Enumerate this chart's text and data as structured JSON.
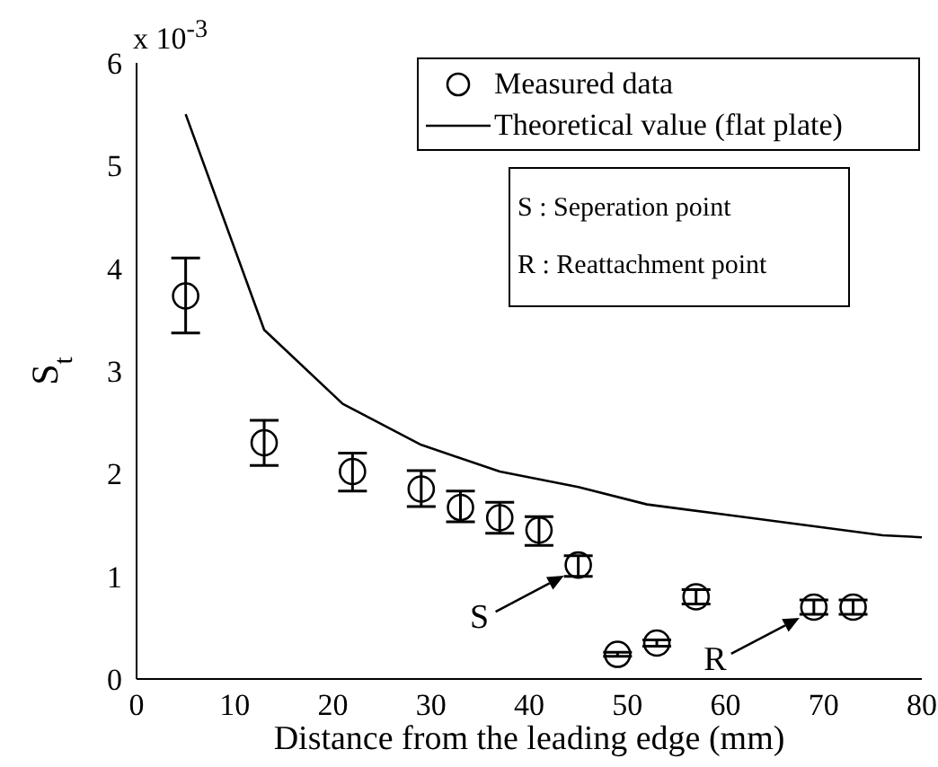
{
  "chart_data": {
    "type": "scatter",
    "xlabel": "Distance from the leading edge (mm)",
    "ylabel": "S$_{t}$",
    "xlim": [
      0,
      80
    ],
    "xticks": [
      0,
      10,
      20,
      30,
      40,
      50,
      60,
      70,
      80
    ],
    "ylim": [
      0,
      6
    ],
    "yticks": [
      0,
      1,
      2,
      3,
      4,
      5,
      6
    ],
    "grid": false,
    "legend": "top right",
    "annotations": [
      "x 10$^{-3}$",
      {
        "text": "S",
        "x": 45,
        "y": 1.11
      },
      {
        "text": "R",
        "x": 69,
        "y": 0.7
      },
      "S : Seperation point",
      "R : Reattachment point"
    ],
    "series": [
      {
        "name": "Measured data",
        "marker": "circle",
        "color": "#000000",
        "x": [
          5,
          13,
          22,
          29,
          33,
          37,
          41,
          45,
          49,
          53,
          57,
          69,
          73
        ],
        "values": [
          3.73,
          2.3,
          2.02,
          1.85,
          1.67,
          1.57,
          1.45,
          1.11,
          0.24,
          0.35,
          0.8,
          0.7,
          0.7
        ],
        "errors": [
          [
            3.37,
            4.1
          ],
          [
            2.08,
            2.52
          ],
          [
            1.83,
            2.2
          ],
          [
            1.68,
            2.03
          ],
          [
            1.53,
            1.83
          ],
          [
            1.42,
            1.72
          ],
          [
            1.3,
            1.58
          ],
          [
            1.0,
            1.2
          ],
          [
            0.22,
            0.26
          ],
          [
            0.32,
            0.38
          ],
          [
            0.73,
            0.87
          ],
          [
            0.63,
            0.77
          ],
          [
            0.63,
            0.77
          ]
        ]
      },
      {
        "name": "Theoretical value (flat plate)",
        "type": "line",
        "marker": "none",
        "line_style": "solid",
        "color": "#000000",
        "x": [
          5,
          13,
          21,
          29,
          37,
          45,
          52,
          60,
          68,
          76,
          80
        ],
        "values": [
          5.5,
          3.4,
          2.68,
          2.28,
          2.02,
          1.87,
          1.7,
          1.6,
          1.5,
          1.4,
          1.38
        ]
      }
    ]
  }
}
